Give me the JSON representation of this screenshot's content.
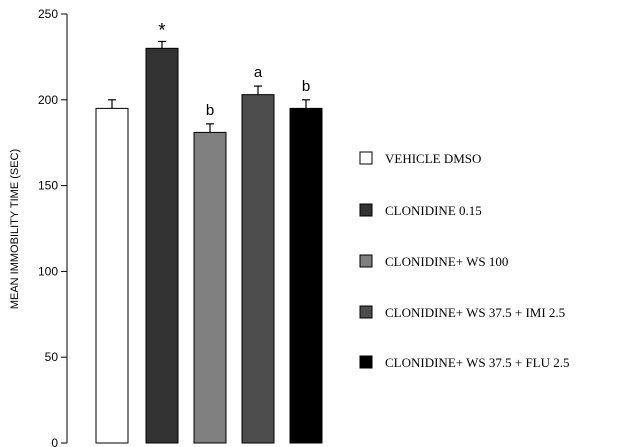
{
  "chart_data": {
    "type": "bar",
    "title": "",
    "xlabel": "",
    "ylabel": "MEAN IMMOBILITY TIME (SEC)",
    "ylim": [
      0,
      250
    ],
    "yticks": [
      0,
      50,
      100,
      150,
      200,
      250
    ],
    "grid": false,
    "legend_position": "right",
    "categories": [
      "VEHICLE DMSO",
      "CLONIDINE 0.15",
      "CLONIDINE+ WS 100",
      "CLONIDINE+ WS 37.5 + IMI 2.5",
      "CLONIDINE+ WS 37.5 + FLU 2.5"
    ],
    "values": [
      195,
      230,
      181,
      203,
      195
    ],
    "errors": [
      5,
      4,
      5,
      5,
      5
    ],
    "annotations": [
      "",
      "*",
      "b",
      "a",
      "b"
    ],
    "colors": [
      "#ffffff",
      "#333333",
      "#808080",
      "#4d4d4d",
      "#000000"
    ]
  }
}
